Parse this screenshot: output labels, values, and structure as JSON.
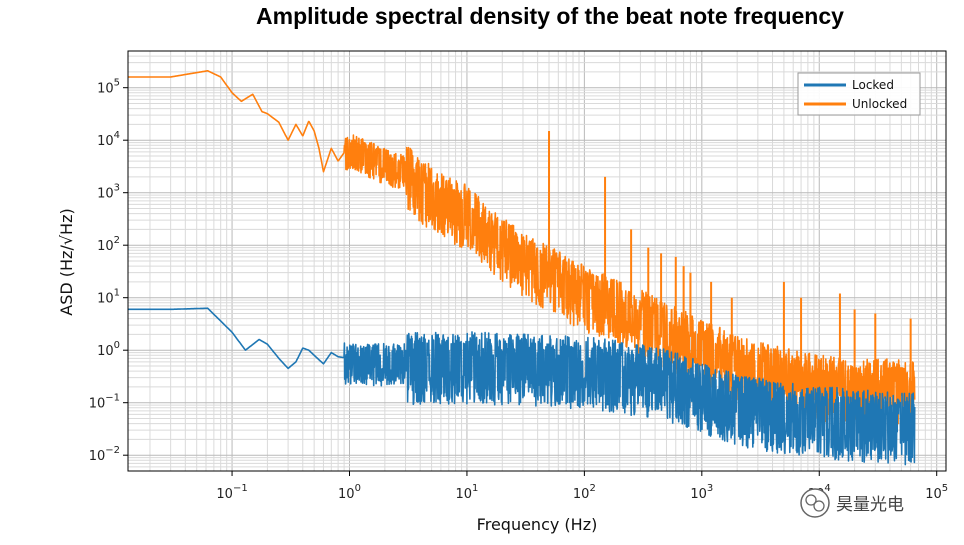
{
  "chart_data": {
    "type": "line",
    "title": "Amplitude spectral density of the beat note frequency",
    "xlabel": "Frequency (Hz)",
    "ylabel": "ASD (Hz/√Hz)",
    "xscale": "log",
    "yscale": "log",
    "xlim": [
      0.013,
      120000
    ],
    "ylim": [
      0.005,
      500000
    ],
    "x_ticks": [
      {
        "value": 0.1,
        "base": "10",
        "exp": "−1"
      },
      {
        "value": 1,
        "base": "10",
        "exp": "0"
      },
      {
        "value": 10,
        "base": "10",
        "exp": "1"
      },
      {
        "value": 100,
        "base": "10",
        "exp": "2"
      },
      {
        "value": 1000,
        "base": "10",
        "exp": "3"
      },
      {
        "value": 10000,
        "base": "10",
        "exp": "4"
      },
      {
        "value": 100000,
        "base": "10",
        "exp": "5"
      }
    ],
    "y_ticks": [
      {
        "value": 0.01,
        "base": "10",
        "exp": "−2"
      },
      {
        "value": 0.1,
        "base": "10",
        "exp": "−1"
      },
      {
        "value": 1,
        "base": "10",
        "exp": "0"
      },
      {
        "value": 10,
        "base": "10",
        "exp": "1"
      },
      {
        "value": 100,
        "base": "10",
        "exp": "2"
      },
      {
        "value": 1000,
        "base": "10",
        "exp": "3"
      },
      {
        "value": 10000,
        "base": "10",
        "exp": "4"
      },
      {
        "value": 100000,
        "base": "10",
        "exp": "5"
      }
    ],
    "grid": true,
    "legend_position": "top-right",
    "series": [
      {
        "name": "Locked",
        "color": "#1f77b4",
        "x": [
          0.013,
          0.03,
          0.062,
          0.1,
          0.13,
          0.17,
          0.2,
          0.25,
          0.3,
          0.35,
          0.4,
          0.45,
          0.5,
          0.6,
          0.7,
          0.8,
          1,
          2,
          5,
          10,
          20,
          50,
          100,
          200,
          500,
          1000,
          2000,
          5000,
          10000,
          20000,
          65000
        ],
        "values": [
          6,
          6,
          6.3,
          2.2,
          1.0,
          1.6,
          1.3,
          0.7,
          0.45,
          0.6,
          1.1,
          1.0,
          0.8,
          0.55,
          0.9,
          0.75,
          0.7,
          0.7,
          0.75,
          0.75,
          0.7,
          0.65,
          0.6,
          0.5,
          0.35,
          0.2,
          0.12,
          0.08,
          0.07,
          0.06,
          0.05
        ],
        "noise_band": [
          0.35,
          0.6
        ]
      },
      {
        "name": "Unlocked",
        "color": "#ff7f0e",
        "x": [
          0.013,
          0.03,
          0.062,
          0.08,
          0.1,
          0.12,
          0.15,
          0.18,
          0.2,
          0.25,
          0.3,
          0.35,
          0.4,
          0.45,
          0.5,
          0.55,
          0.6,
          0.7,
          0.8,
          1,
          2,
          3,
          5,
          10,
          20,
          50,
          100,
          200,
          500,
          1000,
          2000,
          5000,
          10000,
          20000,
          65000
        ],
        "values": [
          160000,
          160000,
          210000,
          160000,
          80000,
          55000,
          75000,
          35000,
          32000,
          22000,
          10000,
          20000,
          12000,
          23000,
          15000,
          7000,
          2500,
          7000,
          4000,
          8000,
          4000,
          3000,
          1200,
          500,
          120,
          35,
          15,
          8,
          3,
          1.4,
          0.7,
          0.4,
          0.3,
          0.25,
          0.25
        ],
        "noise_band": [
          0.3,
          0.55
        ],
        "spikes": [
          {
            "x": 50,
            "y": 15000
          },
          {
            "x": 150,
            "y": 2000
          },
          {
            "x": 250,
            "y": 200
          },
          {
            "x": 350,
            "y": 90
          },
          {
            "x": 450,
            "y": 70
          },
          {
            "x": 600,
            "y": 60
          },
          {
            "x": 700,
            "y": 40
          },
          {
            "x": 800,
            "y": 30
          },
          {
            "x": 1200,
            "y": 20
          },
          {
            "x": 1800,
            "y": 10
          },
          {
            "x": 5000,
            "y": 20
          },
          {
            "x": 7000,
            "y": 10
          },
          {
            "x": 15000,
            "y": 12
          },
          {
            "x": 20000,
            "y": 6
          },
          {
            "x": 30000,
            "y": 5
          },
          {
            "x": 60000,
            "y": 4
          }
        ]
      }
    ]
  },
  "watermark": {
    "text": "昊量光电"
  }
}
